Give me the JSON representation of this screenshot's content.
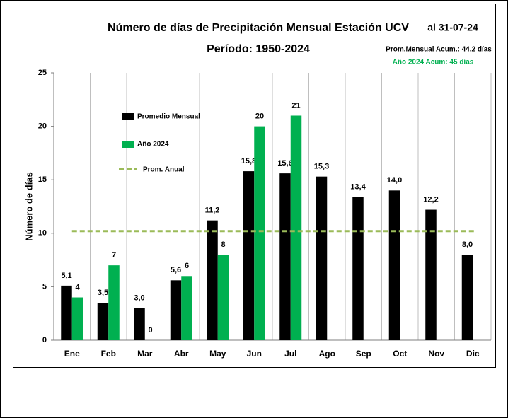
{
  "chart_data": {
    "type": "bar",
    "title": "Número de días de Precipitación Mensual Estación UCV",
    "subtitle": "Período: 1950-2024",
    "y_label": "Número de días",
    "annotations": [
      {
        "text": "al 31-07-24",
        "color": "#000000"
      },
      {
        "text": "Prom.Mensual  Acum.: 44,2 días",
        "color": "#000000"
      },
      {
        "text": "Año 2024 Acum: 45 días",
        "color": "#00b050"
      }
    ],
    "categories": [
      "Ene",
      "Feb",
      "Mar",
      "Abr",
      "May",
      "Jun",
      "Jul",
      "Ago",
      "Sep",
      "Oct",
      "Nov",
      "Dic"
    ],
    "series": [
      {
        "name": "Promedio Mensual",
        "color": "#000000",
        "values": [
          5.1,
          3.5,
          3.0,
          5.6,
          11.2,
          15.8,
          15.6,
          15.3,
          13.4,
          14.0,
          12.2,
          8.0
        ],
        "value_labels": [
          "5,1",
          "3,5",
          "3,0",
          "5,6",
          "11,2",
          "15,8",
          "15,6",
          "15,3",
          "13,4",
          "14,0",
          "12,2",
          "8,0"
        ]
      },
      {
        "name": "Año 2024",
        "color": "#00b050",
        "values": [
          4,
          7,
          0,
          6,
          8,
          20,
          21,
          null,
          null,
          null,
          null,
          null
        ]
      }
    ],
    "reference_line": {
      "name": "Prom. Anual",
      "value": 10.2,
      "color": "#9bbb59",
      "dashed": true
    },
    "ylim": [
      0,
      25
    ],
    "yticks": [
      0,
      5,
      10,
      15,
      20,
      25
    ],
    "vertical_grid": true,
    "legend": "upper-left"
  }
}
